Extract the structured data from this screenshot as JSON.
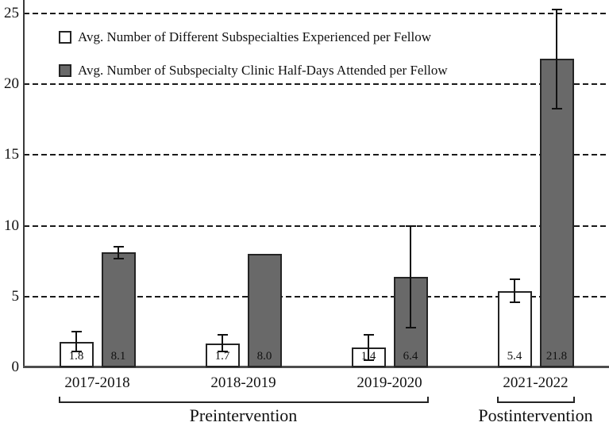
{
  "chart_data": {
    "type": "bar",
    "title": "",
    "xlabel": "",
    "ylabel": "",
    "categories": [
      "2017-2018",
      "2018-2019",
      "2019-2020",
      "2021-2022"
    ],
    "series": [
      {
        "name": "Avg. Number of Different Subspecialties Experienced per Fellow",
        "values": [
          1.8,
          1.7,
          1.4,
          5.4
        ],
        "errors": [
          0.7,
          0.6,
          0.9,
          0.8
        ],
        "fill": "#ffffff"
      },
      {
        "name": "Avg. Number of Subspecialty Clinic Half-Days Attended per Fellow",
        "values": [
          8.1,
          8.0,
          6.4,
          21.8
        ],
        "errors": [
          0.4,
          null,
          3.6,
          3.5
        ],
        "fill": "#696969"
      }
    ],
    "value_labels": [
      [
        "1.8",
        "1.7",
        "1.4",
        "5.4"
      ],
      [
        "8.1",
        "8.0",
        "6.4",
        "21.8"
      ]
    ],
    "yticks": [
      0,
      5,
      10,
      15,
      20,
      25
    ],
    "ylim": [
      0,
      26
    ],
    "grid": "horizontal dashed lines at each nonzero ytick",
    "legend_position": "top-left inside plot",
    "error_bars": "vertical line with end caps, plus-minus",
    "group_annotations": [
      {
        "label": "Preintervention",
        "from_category": 0,
        "to_category": 2
      },
      {
        "label": "Postintervention",
        "from_category": 3,
        "to_category": 3
      }
    ]
  },
  "colors": {
    "background": "#ffffff",
    "bar_white_fill": "#ffffff",
    "bar_gray_fill": "#696969",
    "bar_border": "#242424",
    "gridline": "#1a1a1a",
    "axis_line": "#4d4d4d",
    "text": "#111111"
  }
}
